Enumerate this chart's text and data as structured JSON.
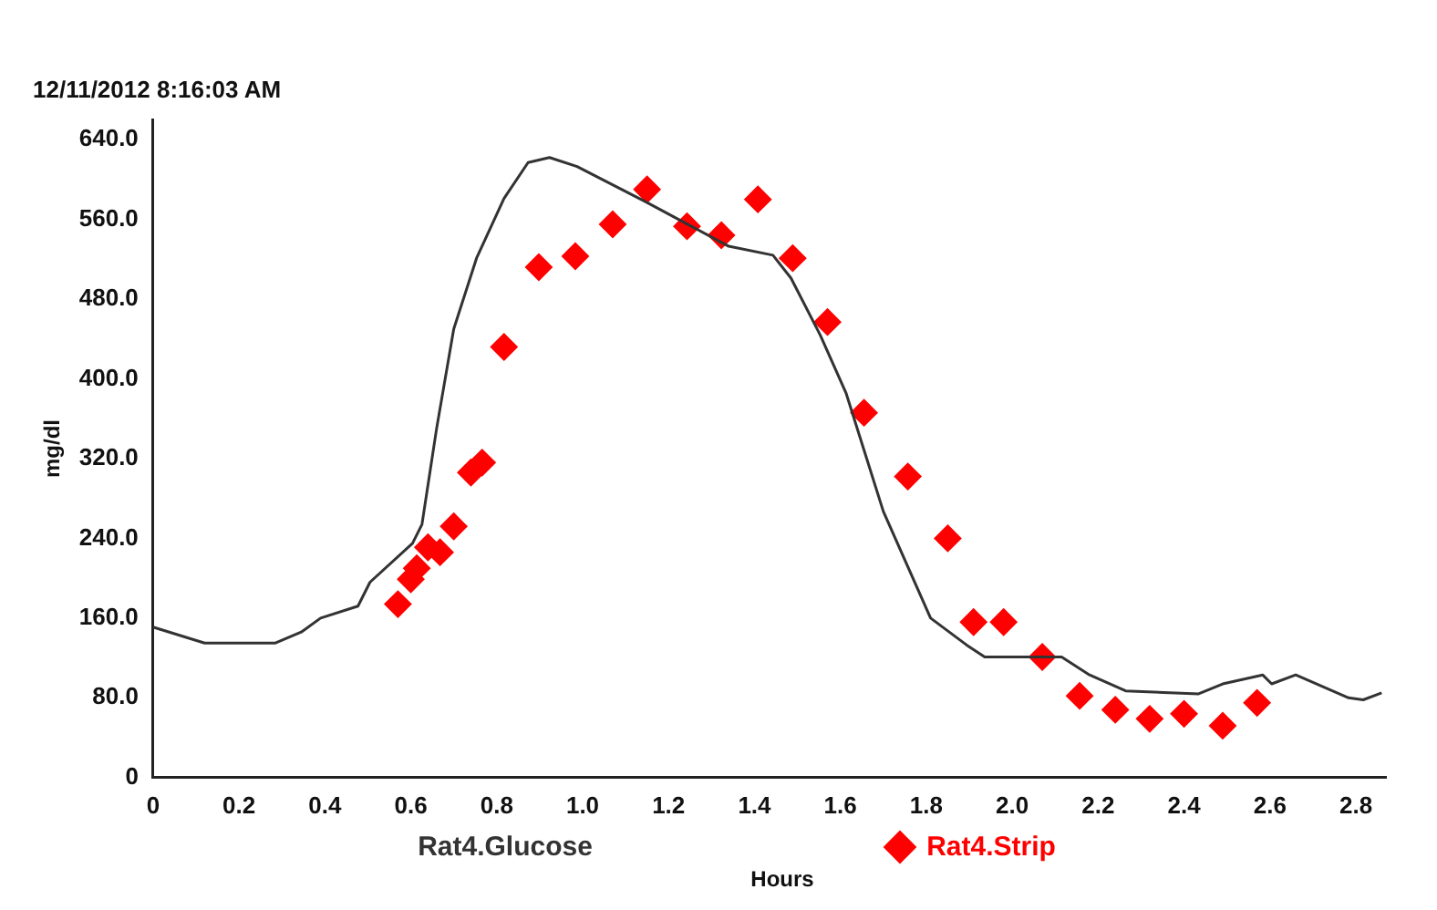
{
  "chart_data": {
    "type": "line",
    "title": "12/11/2012 8:16:03 AM",
    "xlabel": "Hours",
    "ylabel": "mg/dl",
    "xlim": [
      0,
      2.87
    ],
    "xticks": [
      0,
      0.2,
      0.4,
      0.6,
      0.8,
      {
        "value": 1,
        "label": "1.0"
      },
      1.2,
      1.4,
      1.6,
      1.8,
      {
        "value": 2,
        "label": "2.0"
      },
      2.2,
      2.4,
      2.6,
      2.8
    ],
    "ylim": [
      0,
      660
    ],
    "yticks": [
      0,
      {
        "value": 80,
        "label": "80.0"
      },
      {
        "value": 160,
        "label": "160.0"
      },
      {
        "value": 240,
        "label": "240.0"
      },
      {
        "value": 320,
        "label": "320.0"
      },
      {
        "value": 400,
        "label": "400.0"
      },
      {
        "value": 480,
        "label": "480.0"
      },
      {
        "value": 560,
        "label": "560.0"
      },
      {
        "value": 640,
        "label": "640.0"
      }
    ],
    "grid": false,
    "legend": "bottom",
    "series": [
      {
        "name": "Rat4.Glucose",
        "color": "#333333",
        "marker": "none",
        "line_style": "solid",
        "x": [
          0,
          0.12,
          0.285,
          0.345,
          0.39,
          0.477,
          0.505,
          0.604,
          0.626,
          0.66,
          0.7,
          0.753,
          0.817,
          0.873,
          0.923,
          0.987,
          1.145,
          1.34,
          1.443,
          1.485,
          1.553,
          1.613,
          1.7,
          1.81,
          1.894,
          1.936,
          1.996,
          2.115,
          2.18,
          2.264,
          2.434,
          2.49,
          2.583,
          2.604,
          2.66,
          2.783,
          2.817,
          2.86
        ],
        "values": [
          151,
          135,
          135,
          146,
          160,
          172,
          196,
          235,
          254,
          350,
          450,
          521,
          581,
          617,
          622,
          613,
          578,
          533,
          524,
          501,
          444,
          386,
          267,
          160,
          133,
          121,
          121,
          121,
          103,
          87,
          84,
          94,
          103,
          94,
          103,
          80,
          78,
          85
        ]
      },
      {
        "name": "Rat4.Strip",
        "type": "scatter",
        "color": "#ff0000",
        "marker": "diamond",
        "x": [
          0.57,
          0.6,
          0.614,
          0.64,
          0.668,
          0.7,
          0.74,
          0.766,
          0.817,
          0.898,
          0.983,
          1.07,
          1.15,
          1.243,
          1.323,
          1.408,
          1.489,
          1.57,
          1.655,
          1.757,
          1.85,
          1.91,
          1.98,
          2.07,
          2.157,
          2.24,
          2.32,
          2.4,
          2.49,
          2.57
        ],
        "values": [
          174,
          199,
          210,
          231,
          226,
          252,
          306,
          316,
          432,
          512,
          523,
          555,
          590,
          553,
          544,
          580,
          521,
          457,
          366,
          302,
          240,
          156,
          156,
          121,
          82,
          68,
          59,
          64,
          52,
          75
        ]
      }
    ]
  }
}
